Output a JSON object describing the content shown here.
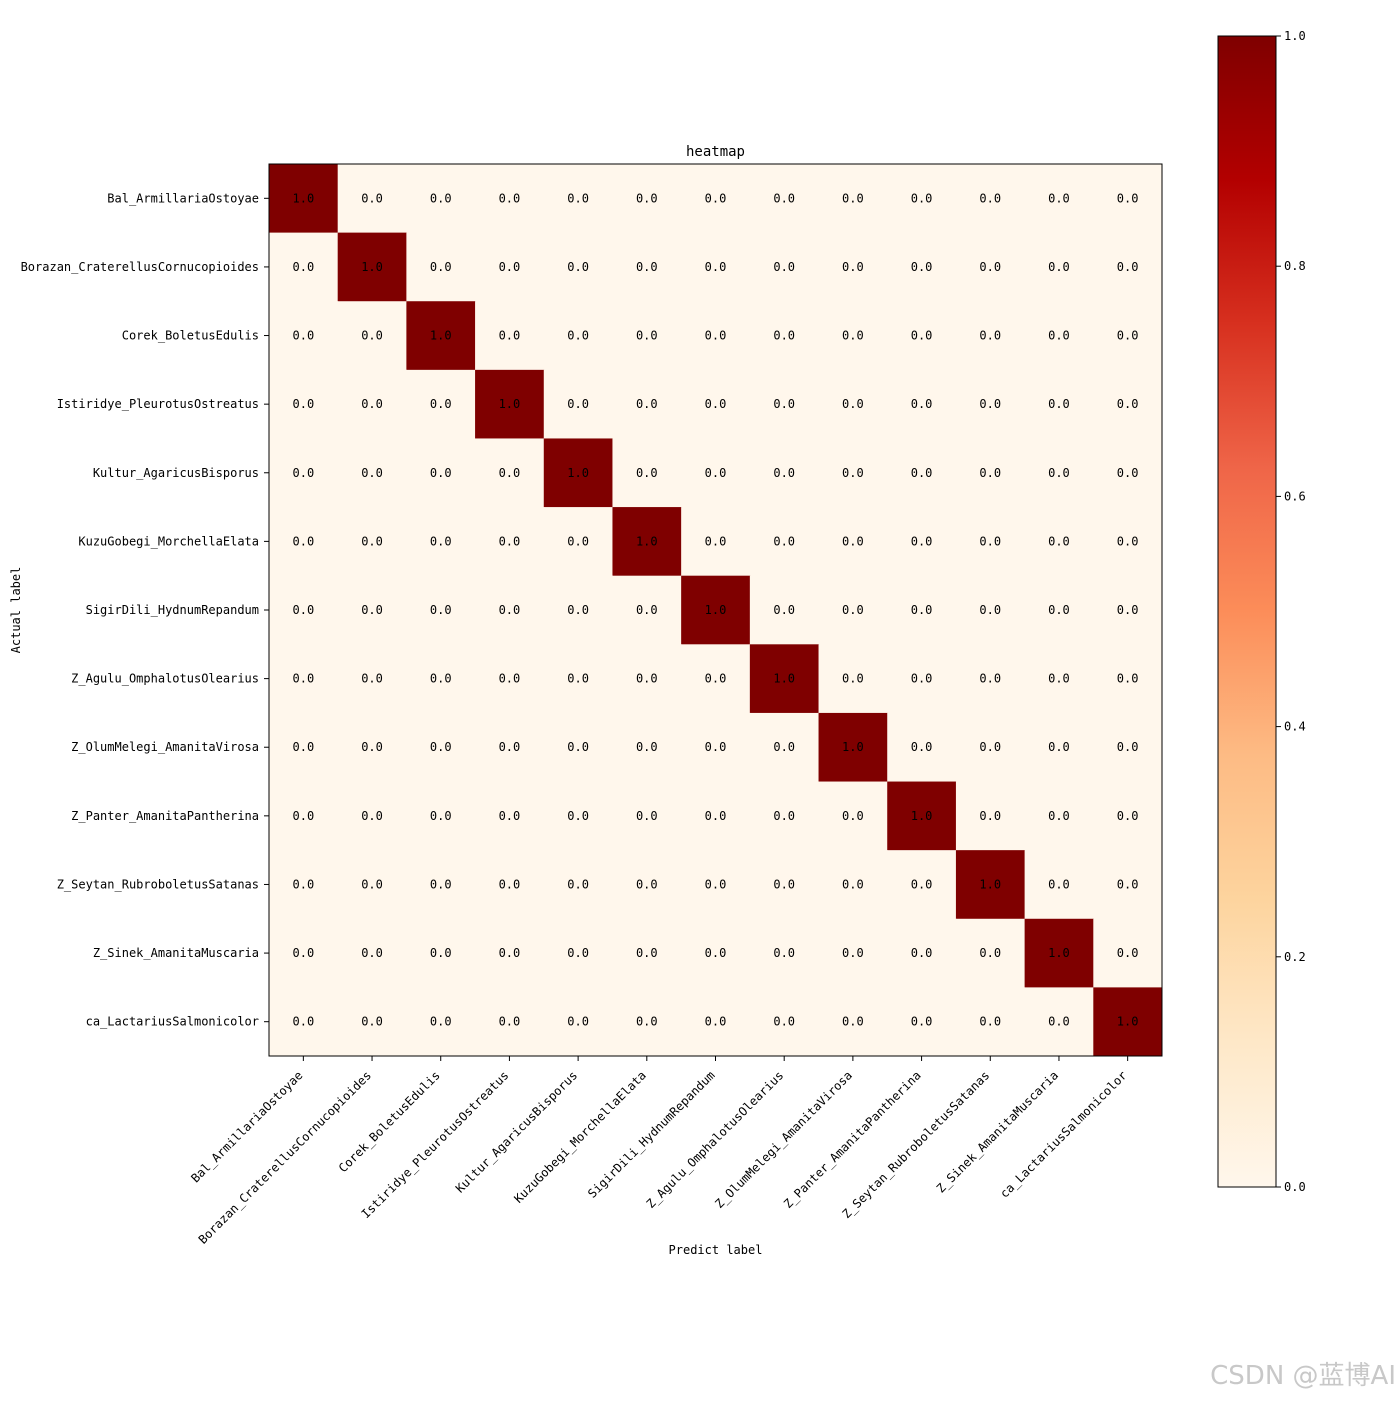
{
  "chart_data": {
    "type": "heatmap",
    "title": "heatmap",
    "xlabel": "Predict label",
    "ylabel": "Actual label",
    "categories": [
      "Bal_ArmillariaOstoyae",
      "Borazan_CraterellusCornucopioides",
      "Corek_BoletusEdulis",
      "Istiridye_PleurotusOstreatus",
      "Kultur_AgaricusBisporus",
      "KuzuGobegi_MorchellaElata",
      "SigirDili_HydnumRepandum",
      "Z_Agulu_OmphalotusOlearius",
      "Z_OlumMelegi_AmanitaVirosa",
      "Z_Panter_AmanitaPantherina",
      "Z_Seytan_RubroboletusSatanas",
      "Z_Sinek_AmanitaMuscaria",
      "ca_LactariusSalmonicolor"
    ],
    "values": [
      [
        1.0,
        0.0,
        0.0,
        0.0,
        0.0,
        0.0,
        0.0,
        0.0,
        0.0,
        0.0,
        0.0,
        0.0,
        0.0
      ],
      [
        0.0,
        1.0,
        0.0,
        0.0,
        0.0,
        0.0,
        0.0,
        0.0,
        0.0,
        0.0,
        0.0,
        0.0,
        0.0
      ],
      [
        0.0,
        0.0,
        1.0,
        0.0,
        0.0,
        0.0,
        0.0,
        0.0,
        0.0,
        0.0,
        0.0,
        0.0,
        0.0
      ],
      [
        0.0,
        0.0,
        0.0,
        1.0,
        0.0,
        0.0,
        0.0,
        0.0,
        0.0,
        0.0,
        0.0,
        0.0,
        0.0
      ],
      [
        0.0,
        0.0,
        0.0,
        0.0,
        1.0,
        0.0,
        0.0,
        0.0,
        0.0,
        0.0,
        0.0,
        0.0,
        0.0
      ],
      [
        0.0,
        0.0,
        0.0,
        0.0,
        0.0,
        1.0,
        0.0,
        0.0,
        0.0,
        0.0,
        0.0,
        0.0,
        0.0
      ],
      [
        0.0,
        0.0,
        0.0,
        0.0,
        0.0,
        0.0,
        1.0,
        0.0,
        0.0,
        0.0,
        0.0,
        0.0,
        0.0
      ],
      [
        0.0,
        0.0,
        0.0,
        0.0,
        0.0,
        0.0,
        0.0,
        1.0,
        0.0,
        0.0,
        0.0,
        0.0,
        0.0
      ],
      [
        0.0,
        0.0,
        0.0,
        0.0,
        0.0,
        0.0,
        0.0,
        0.0,
        1.0,
        0.0,
        0.0,
        0.0,
        0.0
      ],
      [
        0.0,
        0.0,
        0.0,
        0.0,
        0.0,
        0.0,
        0.0,
        0.0,
        0.0,
        1.0,
        0.0,
        0.0,
        0.0
      ],
      [
        0.0,
        0.0,
        0.0,
        0.0,
        0.0,
        0.0,
        0.0,
        0.0,
        0.0,
        0.0,
        1.0,
        0.0,
        0.0
      ],
      [
        0.0,
        0.0,
        0.0,
        0.0,
        0.0,
        0.0,
        0.0,
        0.0,
        0.0,
        0.0,
        0.0,
        1.0,
        0.0
      ],
      [
        0.0,
        0.0,
        0.0,
        0.0,
        0.0,
        0.0,
        0.0,
        0.0,
        0.0,
        0.0,
        0.0,
        0.0,
        1.0
      ]
    ],
    "value_format": "0.0",
    "colorbar": {
      "range": [
        0.0,
        1.0
      ],
      "ticks": [
        0.0,
        0.2,
        0.4,
        0.6,
        0.8,
        1.0
      ],
      "tick_labels": [
        "0.0",
        "0.2",
        "0.4",
        "0.6",
        "0.8",
        "1.0"
      ],
      "colormap": "OrRd",
      "stops": [
        "#fff7ec",
        "#fee8c8",
        "#fdd49e",
        "#fdbb84",
        "#fc8d59",
        "#ef6548",
        "#d7301f",
        "#b30000",
        "#7f0000"
      ]
    },
    "annotation_color": "#000000"
  },
  "watermark": "CSDN @蓝博AI"
}
